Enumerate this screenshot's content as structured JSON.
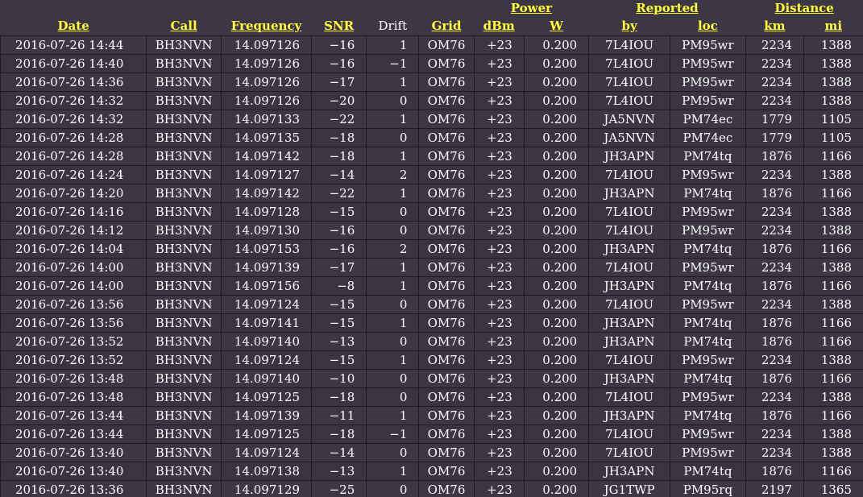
{
  "header": {
    "groups": {
      "power": "Power",
      "reported": "Reported",
      "distance": "Distance"
    },
    "columns": {
      "date": "Date",
      "call": "Call",
      "frequency": "Frequency",
      "snr": "SNR",
      "drift": "Drift",
      "grid": "Grid",
      "dbm": "dBm",
      "w": "W",
      "by": "by",
      "loc": "loc",
      "km": "km",
      "mi": "mi"
    }
  },
  "colors": {
    "background": "#3d3645",
    "header_link": "#ffff33",
    "text": "#ffffff"
  },
  "rows": [
    [
      "2016-07-26 14:44",
      "BH3NVN",
      "14.097126",
      "-16",
      "1",
      "OM76",
      "+23",
      "0.200",
      "7L4IOU",
      "PM95wr",
      "2234",
      "1388"
    ],
    [
      "2016-07-26 14:40",
      "BH3NVN",
      "14.097126",
      "-16",
      "-1",
      "OM76",
      "+23",
      "0.200",
      "7L4IOU",
      "PM95wr",
      "2234",
      "1388"
    ],
    [
      "2016-07-26 14:36",
      "BH3NVN",
      "14.097126",
      "-17",
      "1",
      "OM76",
      "+23",
      "0.200",
      "7L4IOU",
      "PM95wr",
      "2234",
      "1388"
    ],
    [
      "2016-07-26 14:32",
      "BH3NVN",
      "14.097126",
      "-20",
      "0",
      "OM76",
      "+23",
      "0.200",
      "7L4IOU",
      "PM95wr",
      "2234",
      "1388"
    ],
    [
      "2016-07-26 14:32",
      "BH3NVN",
      "14.097133",
      "-22",
      "1",
      "OM76",
      "+23",
      "0.200",
      "JA5NVN",
      "PM74ec",
      "1779",
      "1105"
    ],
    [
      "2016-07-26 14:28",
      "BH3NVN",
      "14.097135",
      "-18",
      "0",
      "OM76",
      "+23",
      "0.200",
      "JA5NVN",
      "PM74ec",
      "1779",
      "1105"
    ],
    [
      "2016-07-26 14:28",
      "BH3NVN",
      "14.097142",
      "-18",
      "1",
      "OM76",
      "+23",
      "0.200",
      "JH3APN",
      "PM74tq",
      "1876",
      "1166"
    ],
    [
      "2016-07-26 14:24",
      "BH3NVN",
      "14.097127",
      "-14",
      "2",
      "OM76",
      "+23",
      "0.200",
      "7L4IOU",
      "PM95wr",
      "2234",
      "1388"
    ],
    [
      "2016-07-26 14:20",
      "BH3NVN",
      "14.097142",
      "-22",
      "1",
      "OM76",
      "+23",
      "0.200",
      "JH3APN",
      "PM74tq",
      "1876",
      "1166"
    ],
    [
      "2016-07-26 14:16",
      "BH3NVN",
      "14.097128",
      "-15",
      "0",
      "OM76",
      "+23",
      "0.200",
      "7L4IOU",
      "PM95wr",
      "2234",
      "1388"
    ],
    [
      "2016-07-26 14:12",
      "BH3NVN",
      "14.097130",
      "-16",
      "0",
      "OM76",
      "+23",
      "0.200",
      "7L4IOU",
      "PM95wr",
      "2234",
      "1388"
    ],
    [
      "2016-07-26 14:04",
      "BH3NVN",
      "14.097153",
      "-16",
      "2",
      "OM76",
      "+23",
      "0.200",
      "JH3APN",
      "PM74tq",
      "1876",
      "1166"
    ],
    [
      "2016-07-26 14:00",
      "BH3NVN",
      "14.097139",
      "-17",
      "1",
      "OM76",
      "+23",
      "0.200",
      "7L4IOU",
      "PM95wr",
      "2234",
      "1388"
    ],
    [
      "2016-07-26 14:00",
      "BH3NVN",
      "14.097156",
      "-8",
      "1",
      "OM76",
      "+23",
      "0.200",
      "JH3APN",
      "PM74tq",
      "1876",
      "1166"
    ],
    [
      "2016-07-26 13:56",
      "BH3NVN",
      "14.097124",
      "-15",
      "0",
      "OM76",
      "+23",
      "0.200",
      "7L4IOU",
      "PM95wr",
      "2234",
      "1388"
    ],
    [
      "2016-07-26 13:56",
      "BH3NVN",
      "14.097141",
      "-15",
      "1",
      "OM76",
      "+23",
      "0.200",
      "JH3APN",
      "PM74tq",
      "1876",
      "1166"
    ],
    [
      "2016-07-26 13:52",
      "BH3NVN",
      "14.097140",
      "-13",
      "0",
      "OM76",
      "+23",
      "0.200",
      "JH3APN",
      "PM74tq",
      "1876",
      "1166"
    ],
    [
      "2016-07-26 13:52",
      "BH3NVN",
      "14.097124",
      "-15",
      "1",
      "OM76",
      "+23",
      "0.200",
      "7L4IOU",
      "PM95wr",
      "2234",
      "1388"
    ],
    [
      "2016-07-26 13:48",
      "BH3NVN",
      "14.097140",
      "-10",
      "0",
      "OM76",
      "+23",
      "0.200",
      "JH3APN",
      "PM74tq",
      "1876",
      "1166"
    ],
    [
      "2016-07-26 13:48",
      "BH3NVN",
      "14.097125",
      "-18",
      "0",
      "OM76",
      "+23",
      "0.200",
      "7L4IOU",
      "PM95wr",
      "2234",
      "1388"
    ],
    [
      "2016-07-26 13:44",
      "BH3NVN",
      "14.097139",
      "-11",
      "1",
      "OM76",
      "+23",
      "0.200",
      "JH3APN",
      "PM74tq",
      "1876",
      "1166"
    ],
    [
      "2016-07-26 13:44",
      "BH3NVN",
      "14.097125",
      "-18",
      "-1",
      "OM76",
      "+23",
      "0.200",
      "7L4IOU",
      "PM95wr",
      "2234",
      "1388"
    ],
    [
      "2016-07-26 13:40",
      "BH3NVN",
      "14.097124",
      "-14",
      "0",
      "OM76",
      "+23",
      "0.200",
      "7L4IOU",
      "PM95wr",
      "2234",
      "1388"
    ],
    [
      "2016-07-26 13:40",
      "BH3NVN",
      "14.097138",
      "-13",
      "1",
      "OM76",
      "+23",
      "0.200",
      "JH3APN",
      "PM74tq",
      "1876",
      "1166"
    ],
    [
      "2016-07-26 13:36",
      "BH3NVN",
      "14.097129",
      "-25",
      "0",
      "OM76",
      "+23",
      "0.200",
      "JG1TWP",
      "PM95rq",
      "2197",
      "1365"
    ]
  ]
}
